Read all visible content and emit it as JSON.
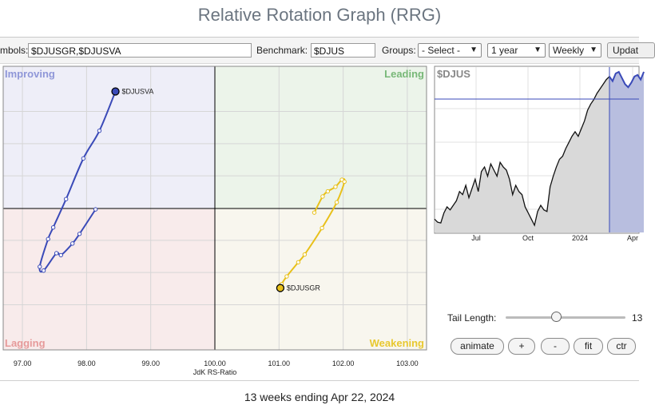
{
  "page": {
    "title": "Relative Rotation Graph (RRG)",
    "footer": "13 weeks ending Apr 22, 2024"
  },
  "controls": {
    "symbols_label": "mbols:",
    "symbols_value": "$DJUSGR,$DJUSVA",
    "benchmark_label": "Benchmark:",
    "benchmark_value": "$DJUS",
    "groups_label": "Groups:",
    "groups_value": "- Select -",
    "period_value": "1 year",
    "frequency_value": "Weekly",
    "update_label": "Updat"
  },
  "tail": {
    "label": "Tail Length:",
    "value": "13"
  },
  "buttons": {
    "animate": "animate",
    "plus": "+",
    "minus": "-",
    "fit": "fit",
    "ctr": "ctr"
  },
  "colors": {
    "improving_bg": "#eeeef8",
    "leading_bg": "#ecf4ea",
    "lagging_bg": "#f8ebeb",
    "weakening_bg": "#f8f6ee",
    "improving": "#8f97d8",
    "leading": "#78b878",
    "lagging": "#e69a9a",
    "weakening": "#e8c830",
    "series_blue": "#3a4ab8",
    "series_yellow": "#e8c01a"
  },
  "chart_data": [
    {
      "type": "scatter",
      "title": "",
      "xlabel": "JdK RS-Ratio",
      "ylabel": "",
      "xlim": [
        96.7,
        103.3
      ],
      "ylim": [
        97.8,
        102.2
      ],
      "x_ticks": [
        "97.00",
        "98.00",
        "99.00",
        "100.00",
        "101.00",
        "102.00",
        "103.00"
      ],
      "center": [
        100,
        100
      ],
      "quadrants": [
        "Improving",
        "Leading",
        "Lagging",
        "Weakening"
      ],
      "series": [
        {
          "name": "$DJUSVA",
          "points": [
            [
              98.14,
              99.98
            ],
            [
              97.89,
              99.6
            ],
            [
              97.78,
              99.45
            ],
            [
              97.6,
              99.27
            ],
            [
              97.53,
              99.3
            ],
            [
              97.33,
              99.03
            ],
            [
              97.27,
              99.09
            ],
            [
              97.4,
              99.52
            ],
            [
              97.48,
              99.7
            ],
            [
              97.68,
              100.14
            ],
            [
              97.95,
              100.77
            ],
            [
              98.2,
              101.2
            ],
            [
              98.45,
              101.81
            ]
          ]
        },
        {
          "name": "$DJUSGR",
          "points": [
            [
              101.55,
              99.93
            ],
            [
              101.68,
              100.18
            ],
            [
              101.76,
              100.26
            ],
            [
              101.88,
              100.33
            ],
            [
              101.98,
              100.44
            ],
            [
              102.02,
              100.41
            ],
            [
              101.9,
              100.09
            ],
            [
              101.67,
              99.69
            ],
            [
              101.4,
              99.28
            ],
            [
              101.3,
              99.16
            ],
            [
              101.12,
              98.94
            ],
            [
              101.04,
              98.82
            ],
            [
              101.02,
              98.76
            ]
          ]
        }
      ]
    },
    {
      "type": "area",
      "title": "$DJUS",
      "x_ticks": [
        "Jul",
        "Oct",
        "2024",
        "Apr"
      ],
      "values": [
        0.04,
        0.02,
        0.015,
        0.08,
        0.12,
        0.1,
        0.13,
        0.16,
        0.22,
        0.2,
        0.26,
        0.18,
        0.24,
        0.3,
        0.22,
        0.35,
        0.38,
        0.32,
        0.4,
        0.36,
        0.32,
        0.41,
        0.38,
        0.36,
        0.3,
        0.2,
        0.26,
        0.22,
        0.2,
        0.12,
        0.08,
        0.04,
        0.0,
        0.09,
        0.13,
        0.1,
        0.09,
        0.25,
        0.32,
        0.38,
        0.43,
        0.45,
        0.5,
        0.54,
        0.58,
        0.61,
        0.58,
        0.63,
        0.68,
        0.75,
        0.79,
        0.82,
        0.86,
        0.89,
        0.92,
        0.95,
        0.97,
        0.94,
        0.99,
        1.0,
        0.96,
        0.92,
        0.9,
        0.93,
        0.97,
        0.98,
        0.95,
        1.0
      ],
      "highlight_from_index": 56
    }
  ]
}
